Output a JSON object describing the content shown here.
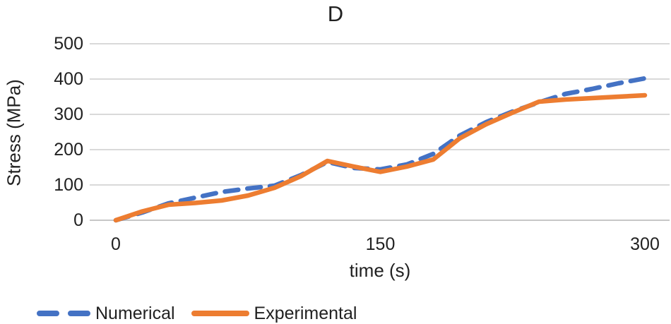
{
  "chart_data": {
    "type": "line",
    "title": "D",
    "xlabel": "time (s)",
    "ylabel": "Stress (MPa)",
    "x": [
      0,
      15,
      30,
      45,
      60,
      75,
      90,
      105,
      120,
      135,
      150,
      165,
      180,
      195,
      210,
      225,
      240,
      255,
      270,
      285,
      300
    ],
    "series": [
      {
        "name": "Numerical",
        "color": "#4472C4",
        "style": "dashed",
        "values": [
          0,
          22,
          48,
          64,
          80,
          90,
          98,
          128,
          165,
          148,
          144,
          158,
          188,
          240,
          278,
          308,
          334,
          358,
          372,
          388,
          402
        ]
      },
      {
        "name": "Experimental",
        "color": "#ED7D31",
        "style": "solid",
        "values": [
          0,
          25,
          44,
          49,
          56,
          70,
          92,
          125,
          168,
          152,
          137,
          152,
          172,
          232,
          272,
          305,
          336,
          342,
          346,
          350,
          354
        ]
      }
    ],
    "xticks": [
      0,
      150,
      300
    ],
    "yticks": [
      0,
      100,
      200,
      300,
      400,
      500
    ],
    "xlim": [
      0,
      300
    ],
    "ylim": [
      0,
      500
    ],
    "grid": "horizontal",
    "legend_position": "bottom-left"
  },
  "style": {
    "gridline_color": "#D9D9D9",
    "axisline_color": "#C6C6C6",
    "text_color": "#212121",
    "line_width": 6.5,
    "dash_pattern": "19 13"
  }
}
